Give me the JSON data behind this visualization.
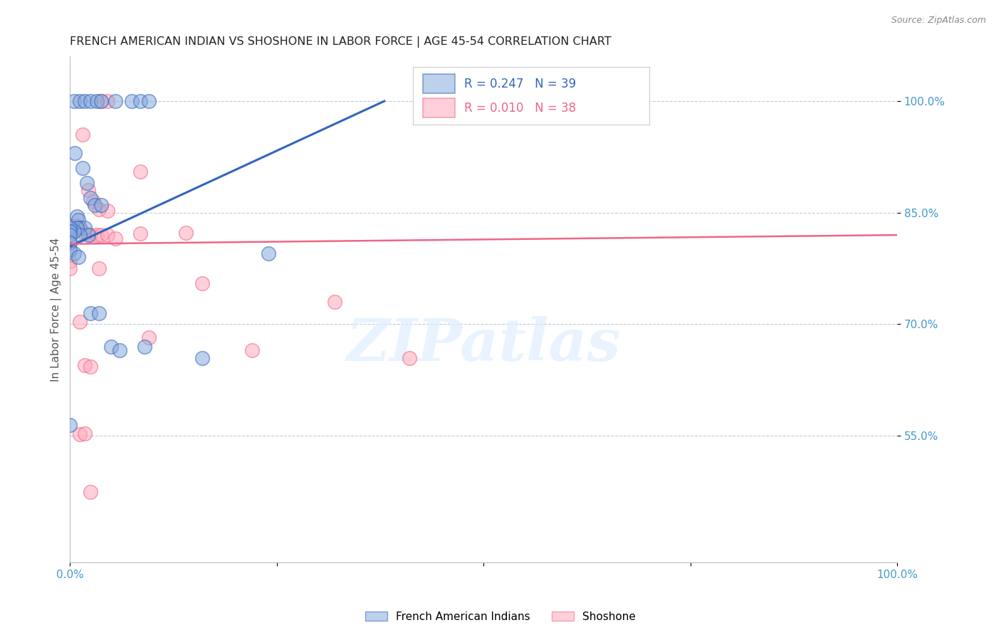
{
  "title": "FRENCH AMERICAN INDIAN VS SHOSHONE IN LABOR FORCE | AGE 45-54 CORRELATION CHART",
  "source": "Source: ZipAtlas.com",
  "ylabel": "In Labor Force | Age 45-54",
  "xlim": [
    0.0,
    1.0
  ],
  "ylim": [
    0.38,
    1.06
  ],
  "ytick_positions": [
    0.55,
    0.7,
    0.85,
    1.0
  ],
  "ytick_labels": [
    "55.0%",
    "70.0%",
    "85.0%",
    "100.0%"
  ],
  "color_blue": "#88AADD",
  "color_pink": "#FFAABB",
  "line_blue": "#3366BB",
  "line_pink": "#EE6688",
  "blue_scatter_x": [
    0.005,
    0.012,
    0.018,
    0.025,
    0.032,
    0.038,
    0.055,
    0.075,
    0.085,
    0.095,
    0.006,
    0.015,
    0.02,
    0.025,
    0.03,
    0.038,
    0.008,
    0.01,
    0.012,
    0.018,
    0.022,
    0.008,
    0.012,
    0.005,
    0.0,
    0.0,
    0.0,
    0.0,
    0.0,
    0.005,
    0.01,
    0.025,
    0.035,
    0.05,
    0.06,
    0.09,
    0.16,
    0.24,
    0.0
  ],
  "blue_scatter_y": [
    1.0,
    1.0,
    1.0,
    1.0,
    1.0,
    1.0,
    1.0,
    1.0,
    1.0,
    1.0,
    0.93,
    0.91,
    0.89,
    0.87,
    0.86,
    0.86,
    0.845,
    0.84,
    0.83,
    0.83,
    0.82,
    0.83,
    0.82,
    0.825,
    0.83,
    0.825,
    0.82,
    0.81,
    0.8,
    0.795,
    0.79,
    0.715,
    0.715,
    0.67,
    0.665,
    0.67,
    0.655,
    0.795,
    0.565
  ],
  "pink_scatter_x": [
    0.038,
    0.045,
    0.015,
    0.022,
    0.028,
    0.035,
    0.045,
    0.008,
    0.012,
    0.018,
    0.025,
    0.032,
    0.038,
    0.045,
    0.055,
    0.085,
    0.14,
    0.085,
    0.16,
    0.22,
    0.32,
    0.41,
    0.52,
    0.0,
    0.0,
    0.0,
    0.0,
    0.0,
    0.0,
    0.0,
    0.012,
    0.018,
    0.025,
    0.012,
    0.018,
    0.025,
    0.035,
    0.095
  ],
  "pink_scatter_y": [
    1.0,
    1.0,
    0.955,
    0.88,
    0.865,
    0.855,
    0.853,
    0.833,
    0.83,
    0.822,
    0.82,
    0.82,
    0.82,
    0.82,
    0.815,
    0.905,
    0.823,
    0.822,
    0.755,
    0.665,
    0.73,
    0.655,
    1.0,
    0.833,
    0.825,
    0.82,
    0.81,
    0.8,
    0.785,
    0.775,
    0.703,
    0.645,
    0.643,
    0.552,
    0.553,
    0.475,
    0.775,
    0.682
  ],
  "blue_line_x": [
    0.0,
    0.38
  ],
  "blue_line_y": [
    0.805,
    1.0
  ],
  "pink_line_x": [
    0.0,
    1.0
  ],
  "pink_line_y": [
    0.808,
    0.82
  ],
  "watermark": "ZIPatlas",
  "legend_label_blue": "French American Indians",
  "legend_label_pink": "Shoshone",
  "legend_r1": "R = 0.247",
  "legend_n1": "N = 39",
  "legend_r2": "R = 0.010",
  "legend_n2": "N = 38"
}
